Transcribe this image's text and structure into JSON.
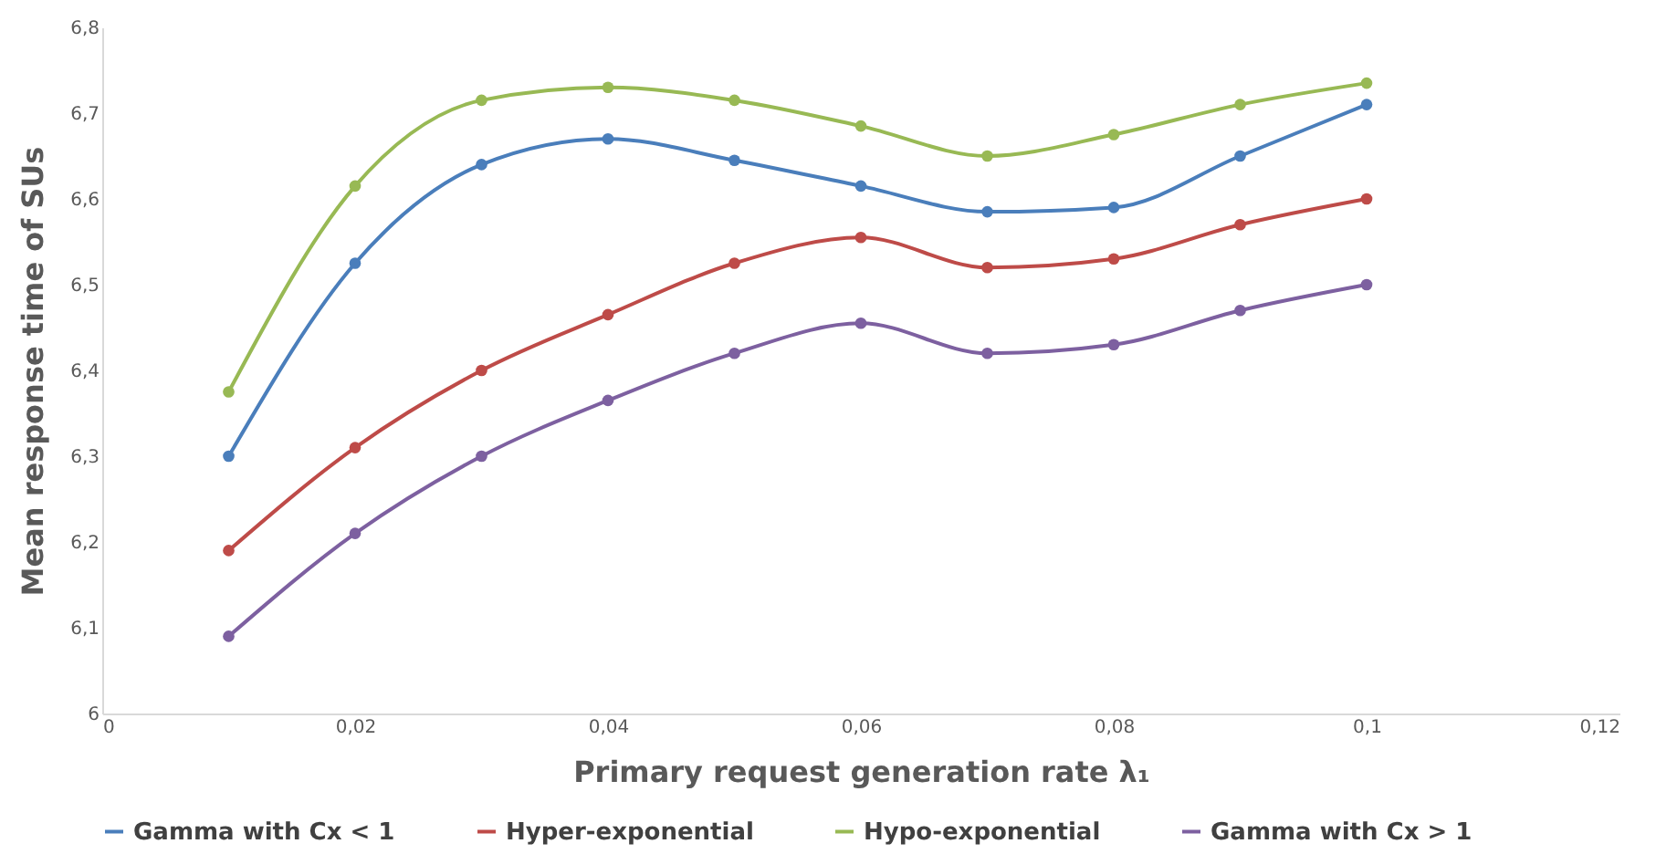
{
  "chart_data": {
    "type": "line",
    "xlabel": "Primary request generation rate  λ₁",
    "ylabel": "Mean response time of SUs",
    "x": [
      0.01,
      0.02,
      0.03,
      0.04,
      0.05,
      0.06,
      0.07,
      0.08,
      0.09,
      0.1
    ],
    "series": [
      {
        "name": "Gamma with Cx < 1",
        "color": "#4a7ebb",
        "values": [
          6.3,
          6.525,
          6.64,
          6.67,
          6.645,
          6.615,
          6.585,
          6.59,
          6.65,
          6.71
        ]
      },
      {
        "name": "Hyper-exponential",
        "color": "#be4b48",
        "values": [
          6.19,
          6.31,
          6.4,
          6.465,
          6.525,
          6.555,
          6.52,
          6.53,
          6.57,
          6.6
        ]
      },
      {
        "name": "Hypo-exponential",
        "color": "#98b954",
        "values": [
          6.375,
          6.615,
          6.715,
          6.73,
          6.715,
          6.685,
          6.65,
          6.675,
          6.71,
          6.735
        ]
      },
      {
        "name": "Gamma with Cx > 1",
        "color": "#7d60a0",
        "values": [
          6.09,
          6.21,
          6.3,
          6.365,
          6.42,
          6.455,
          6.42,
          6.43,
          6.47,
          6.5
        ]
      }
    ],
    "xlim": [
      0,
      0.12
    ],
    "xticks": [
      0,
      {
        "value": 0.02,
        "label": "0,02"
      },
      {
        "value": 0.04,
        "label": "0,04"
      },
      {
        "value": 0.06,
        "label": "0,06"
      },
      {
        "value": 0.08,
        "label": "0,08"
      },
      {
        "value": 0.1,
        "label": "0,1"
      },
      {
        "value": 0.12,
        "label": "0,12"
      }
    ],
    "ylim": [
      6,
      6.8
    ],
    "yticks": [
      6,
      {
        "value": 6.1,
        "label": "6,1"
      },
      {
        "value": 6.2,
        "label": "6,2"
      },
      {
        "value": 6.3,
        "label": "6,3"
      },
      {
        "value": 6.4,
        "label": "6,4"
      },
      {
        "value": 6.5,
        "label": "6,5"
      },
      {
        "value": 6.6,
        "label": "6,6"
      },
      {
        "value": 6.7,
        "label": "6,7"
      },
      {
        "value": 6.8,
        "label": "6,8"
      }
    ],
    "grid": false,
    "legend": "bottom",
    "marker": "circle",
    "line_style": "solid"
  }
}
